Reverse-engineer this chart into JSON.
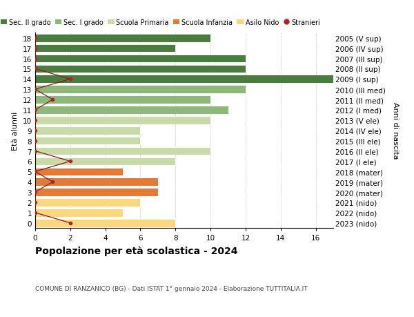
{
  "ages": [
    0,
    1,
    2,
    3,
    4,
    5,
    6,
    7,
    8,
    9,
    10,
    11,
    12,
    13,
    14,
    15,
    16,
    17,
    18
  ],
  "years": [
    "2023 (nido)",
    "2022 (nido)",
    "2021 (nido)",
    "2020 (mater)",
    "2019 (mater)",
    "2018 (mater)",
    "2017 (I ele)",
    "2016 (II ele)",
    "2015 (III ele)",
    "2014 (IV ele)",
    "2013 (V ele)",
    "2012 (I med)",
    "2011 (II med)",
    "2010 (III med)",
    "2009 (I sup)",
    "2008 (II sup)",
    "2007 (III sup)",
    "2006 (IV sup)",
    "2005 (V sup)"
  ],
  "values": [
    8,
    5,
    6,
    7,
    7,
    5,
    8,
    10,
    6,
    6,
    10,
    11,
    10,
    12,
    17,
    12,
    12,
    8,
    10
  ],
  "stranieri": [
    2,
    0,
    0,
    0,
    1,
    0,
    2,
    0,
    0,
    0,
    0,
    0,
    1,
    0,
    2,
    0,
    0,
    0,
    0
  ],
  "bar_colors": [
    "#f9d77e",
    "#f9d77e",
    "#f9d77e",
    "#e07b39",
    "#e07b39",
    "#e07b39",
    "#c8dba8",
    "#c8dba8",
    "#c8dba8",
    "#c8dba8",
    "#c8dba8",
    "#8db87a",
    "#8db87a",
    "#8db87a",
    "#4a7c3f",
    "#4a7c3f",
    "#4a7c3f",
    "#4a7c3f",
    "#4a7c3f"
  ],
  "legend_colors": [
    "#4a7c3f",
    "#8db87a",
    "#c8dba8",
    "#e07b39",
    "#f9d77e",
    "#b22222"
  ],
  "legend_labels": [
    "Sec. II grado",
    "Sec. I grado",
    "Scuola Primaria",
    "Scuola Infanzia",
    "Asilo Nido",
    "Stranieri"
  ],
  "title": "Popolazione per età scolastica - 2024",
  "subtitle": "COMUNE DI RANZANICO (BG) - Dati ISTAT 1° gennaio 2024 - Elaborazione TUTTITALIA.IT",
  "ylabel_left": "Età alunni",
  "ylabel_right": "Anni di nascita",
  "xlim": [
    0,
    17
  ],
  "background_color": "#ffffff",
  "grid_color": "#cccccc",
  "stranieri_color": "#b22222",
  "line_color": "#8b1a1a"
}
